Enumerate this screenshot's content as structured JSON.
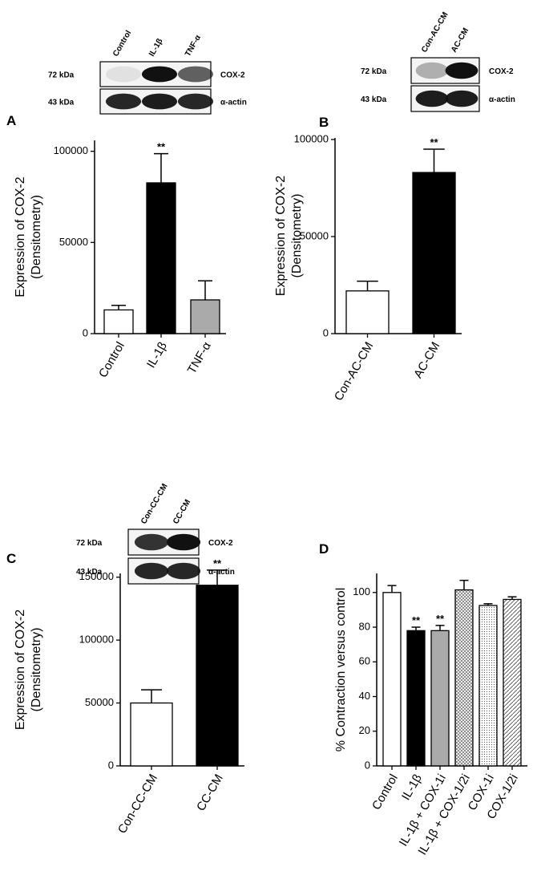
{
  "chart_data": [
    {
      "type": "bar",
      "panel": "A",
      "ylabel": [
        "Expression of COX-2",
        "(Densitometry)"
      ],
      "categories": [
        "Control",
        "IL-1β",
        "TNF-α"
      ],
      "values": [
        13000,
        82700,
        18500
      ],
      "errors": [
        2500,
        16000,
        10500
      ],
      "colors": [
        "#ffffff",
        "#000000",
        "#aaaaaa"
      ],
      "annotations": [
        null,
        "**",
        null
      ],
      "ylim": [
        0,
        106000
      ],
      "yticks": [
        0,
        50000,
        100000
      ],
      "blot": {
        "lanes": [
          "Control",
          "IL-1β",
          "TNF-α"
        ],
        "rows": [
          [
            "72 kDa",
            "COX-2"
          ],
          [
            "43 kDa",
            "α-actin"
          ]
        ]
      }
    },
    {
      "type": "bar",
      "panel": "B",
      "ylabel": [
        "Expression of COX-2",
        "(Densitometry)"
      ],
      "categories": [
        "Con-AC-CM",
        "AC-CM"
      ],
      "values": [
        22000,
        83000
      ],
      "errors": [
        5000,
        12000
      ],
      "colors": [
        "#ffffff",
        "#000000"
      ],
      "annotations": [
        null,
        "**"
      ],
      "ylim": [
        0,
        100800
      ],
      "yticks": [
        0,
        50000,
        100000
      ],
      "blot": {
        "lanes": [
          "Con-AC-CM",
          "AC-CM"
        ],
        "rows": [
          [
            "72 kDa",
            "COX-2"
          ],
          [
            "43 kDa",
            "α-actin"
          ]
        ]
      }
    },
    {
      "type": "bar",
      "panel": "C",
      "ylabel": [
        "Expression of COX-2",
        "(Densitometry)"
      ],
      "categories": [
        "Con-CC-CM",
        "CC-CM"
      ],
      "values": [
        50000,
        143600
      ],
      "errors": [
        10500,
        12000
      ],
      "colors": [
        "#ffffff",
        "#000000"
      ],
      "annotations": [
        null,
        "**"
      ],
      "ylim": [
        0,
        153000
      ],
      "yticks": [
        0,
        50000,
        100000,
        150000
      ],
      "blot": {
        "lanes": [
          "Con-CC-CM",
          "CC-CM"
        ],
        "rows": [
          [
            "72 kDa",
            "COX-2"
          ],
          [
            "43 kDa",
            "α-actin"
          ]
        ]
      }
    },
    {
      "type": "bar",
      "panel": "D",
      "ylabel": [
        "% Contraction versus control"
      ],
      "categories": [
        "Control",
        "IL-1β",
        "IL-1β + COX-1i",
        "IL-1β + COX-1/2i",
        "COX-1i",
        "COX-1/2i"
      ],
      "values": [
        100,
        78,
        78,
        101.5,
        92.5,
        96
      ],
      "errors": [
        4,
        2,
        3,
        5.5,
        1,
        1.5
      ],
      "colors": [
        "#ffffff",
        "#000000",
        "#aaaaaa",
        "crosshatch",
        "dots",
        "hatch"
      ],
      "annotations": [
        null,
        "**",
        "**",
        null,
        null,
        null
      ],
      "ylim": [
        0,
        111
      ],
      "yticks": [
        0,
        20,
        40,
        60,
        80,
        100
      ]
    }
  ]
}
